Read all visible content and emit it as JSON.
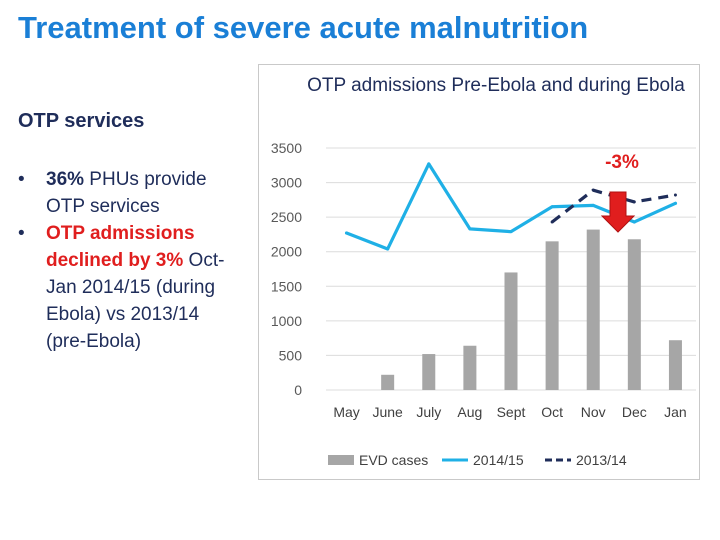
{
  "slide": {
    "title": "Treatment of severe acute malnutrition",
    "subtitle": "OTP services",
    "bullet1_strong": "36%",
    "bullet1_text": " PHUs provide OTP services",
    "bullet2_strong": "OTP admissions declined by 3%",
    "bullet2_text": " Oct- Jan 2014/15 (during Ebola) vs 2013/14 (pre-Ebola)",
    "bullet_char": "•"
  },
  "chart_data": {
    "type": "bar+line",
    "title": "OTP admissions Pre-Ebola and during Ebola",
    "categories": [
      "May",
      "June",
      "July",
      "Aug",
      "Sept",
      "Oct",
      "Nov",
      "Dec",
      "Jan"
    ],
    "ylim": [
      0,
      3500
    ],
    "yticks": [
      0,
      500,
      1000,
      1500,
      2000,
      2500,
      3000,
      3500
    ],
    "series": [
      {
        "name": "EVD cases",
        "kind": "bar",
        "color": "#a6a6a6",
        "values": [
          0,
          220,
          520,
          640,
          1700,
          2150,
          2320,
          2180,
          720
        ]
      },
      {
        "name": "2014/15",
        "kind": "line",
        "color": "#1fb0e6",
        "values": [
          2270,
          2040,
          3270,
          2330,
          2290,
          2650,
          2670,
          2430,
          2700
        ]
      },
      {
        "name": "2013/14",
        "kind": "dashed-line",
        "color": "#1f2d5a",
        "values": [
          null,
          null,
          null,
          null,
          null,
          2430,
          2890,
          2720,
          2820
        ]
      }
    ],
    "annotation": {
      "label": "-3%",
      "color": "#e01e1e"
    }
  }
}
